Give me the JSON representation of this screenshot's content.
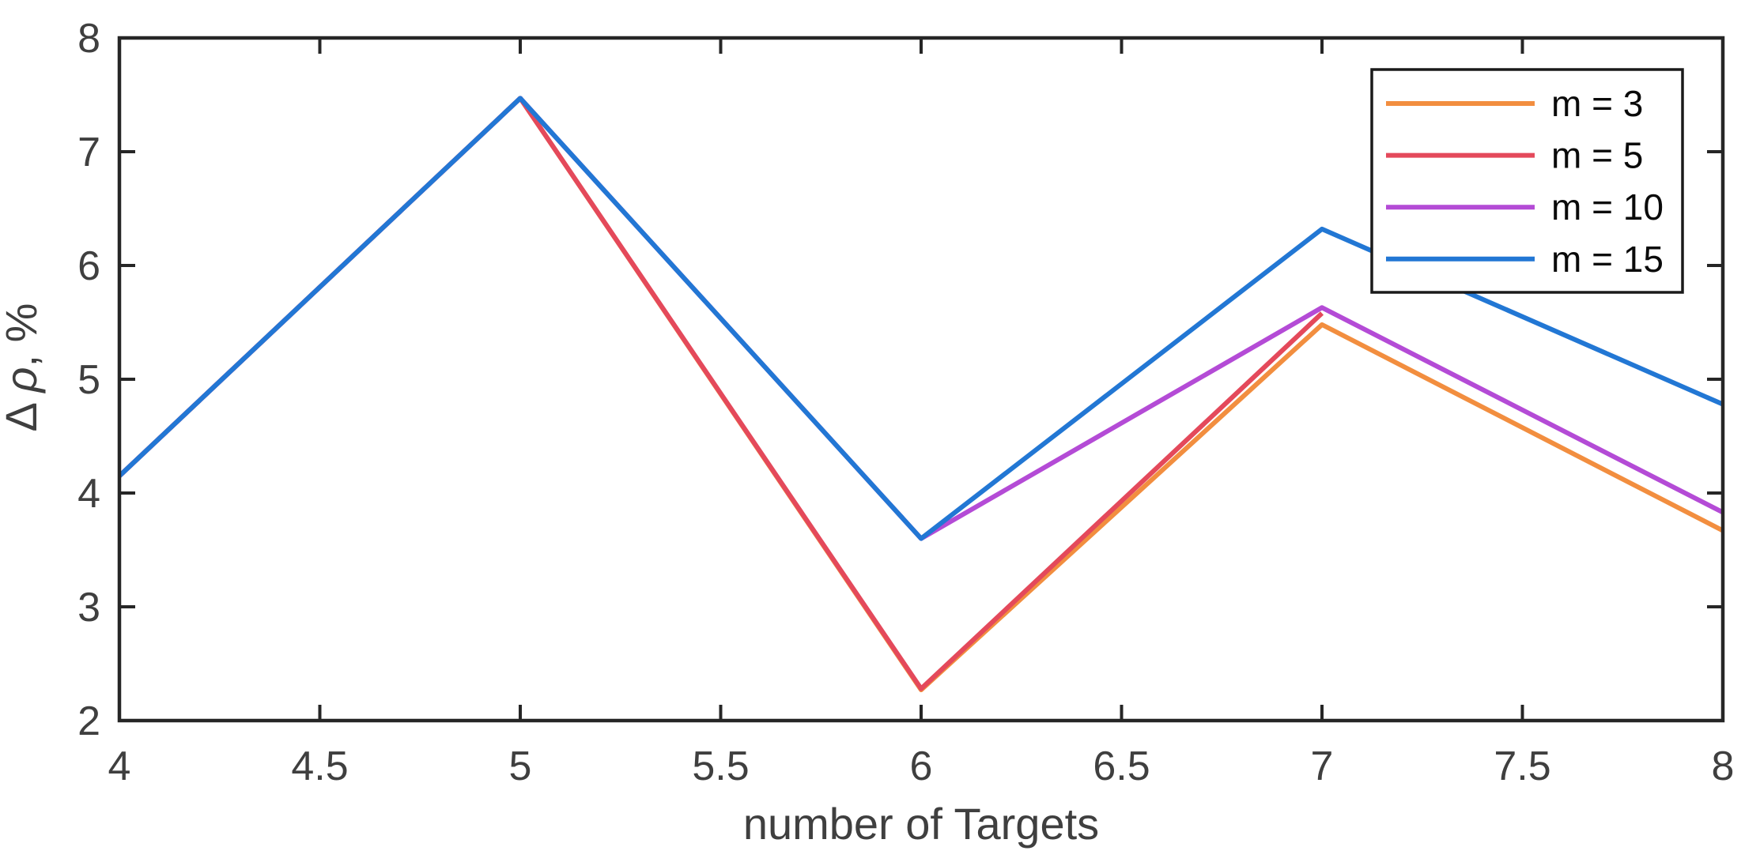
{
  "figure": {
    "background": "#FFFFFF"
  },
  "chart_data": {
    "type": "line",
    "title": "",
    "xlabel": "number of Targets",
    "ylabel": "Δ ρ, %",
    "xlim": [
      4,
      8
    ],
    "ylim": [
      2,
      8
    ],
    "xticks": [
      4,
      4.5,
      5,
      5.5,
      6,
      6.5,
      7,
      7.5,
      8
    ],
    "yticks": [
      2,
      3,
      4,
      5,
      6,
      7,
      8
    ],
    "grid": false,
    "box": true,
    "tick_direction": "in",
    "x": [
      4,
      5,
      6,
      7,
      8
    ],
    "series": [
      {
        "name": "m = 3",
        "color": "#F28E3F",
        "values": [
          4.15,
          7.47,
          2.27,
          5.48,
          3.67
        ]
      },
      {
        "name": "m = 5",
        "color": "#E4495B",
        "values": [
          4.15,
          7.47,
          2.28,
          5.58,
          null
        ]
      },
      {
        "name": "m = 10",
        "color": "#B44BD6",
        "values": [
          4.15,
          7.47,
          3.6,
          5.63,
          3.83
        ]
      },
      {
        "name": "m = 15",
        "color": "#2277D4",
        "values": [
          4.15,
          7.47,
          3.6,
          6.32,
          4.78
        ]
      }
    ],
    "legend": {
      "position": "top-right",
      "entries": [
        "m = 3",
        "m = 5",
        "m = 10",
        "m = 15"
      ],
      "border_color": "#1A1A1A",
      "background": "#FFFFFF"
    },
    "axis_color": "#262626",
    "tick_label_color": "#3F3F3F",
    "axis_label_color": "#3F3F3F",
    "legend_text_color": "#0A0A0A"
  }
}
